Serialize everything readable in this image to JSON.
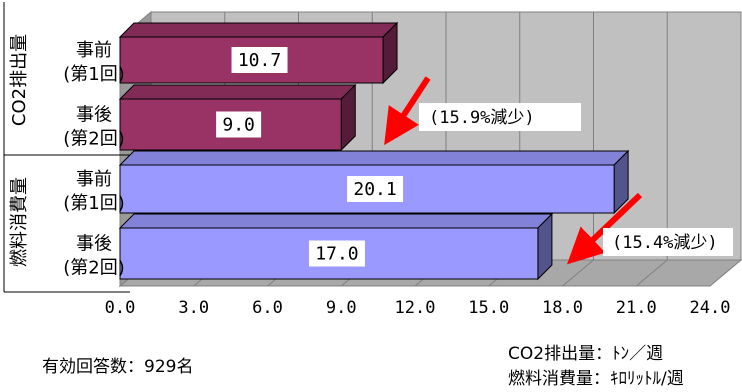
{
  "chart_data": {
    "type": "bar",
    "orientation": "horizontal",
    "three_d": true,
    "categories": [
      "事前\n(第1回)",
      "事後\n(第2回)",
      "事前\n(第1回)",
      "事後\n(第2回)"
    ],
    "groups": [
      {
        "label": "CO2排出量",
        "categories": [
          0,
          1
        ],
        "color": "#993366"
      },
      {
        "label": "燃料消費量",
        "categories": [
          2,
          3
        ],
        "color": "#9999ff"
      }
    ],
    "values": [
      10.7,
      9.0,
      20.1,
      17.0
    ],
    "value_labels": [
      "10.7",
      "9.0",
      "20.1",
      "17.0"
    ],
    "xlim": [
      0,
      24
    ],
    "xticks": [
      "0.0",
      "3.0",
      "6.0",
      "9.0",
      "12.0",
      "15.0",
      "18.0",
      "21.0",
      "24.0"
    ],
    "grid": true,
    "annotations": [
      {
        "text": "(15.9%減少)",
        "arrow_color": "#ff0000"
      },
      {
        "text": "(15.4%減少)",
        "arrow_color": "#ff0000"
      }
    ]
  },
  "footer": {
    "respondents": "有効回答数：929名",
    "unit_co2": "CO2排出量：ﾄﾝ／週",
    "unit_fuel": "燃料消費量：ｷﾛﾘｯﾄﾙ/週"
  }
}
